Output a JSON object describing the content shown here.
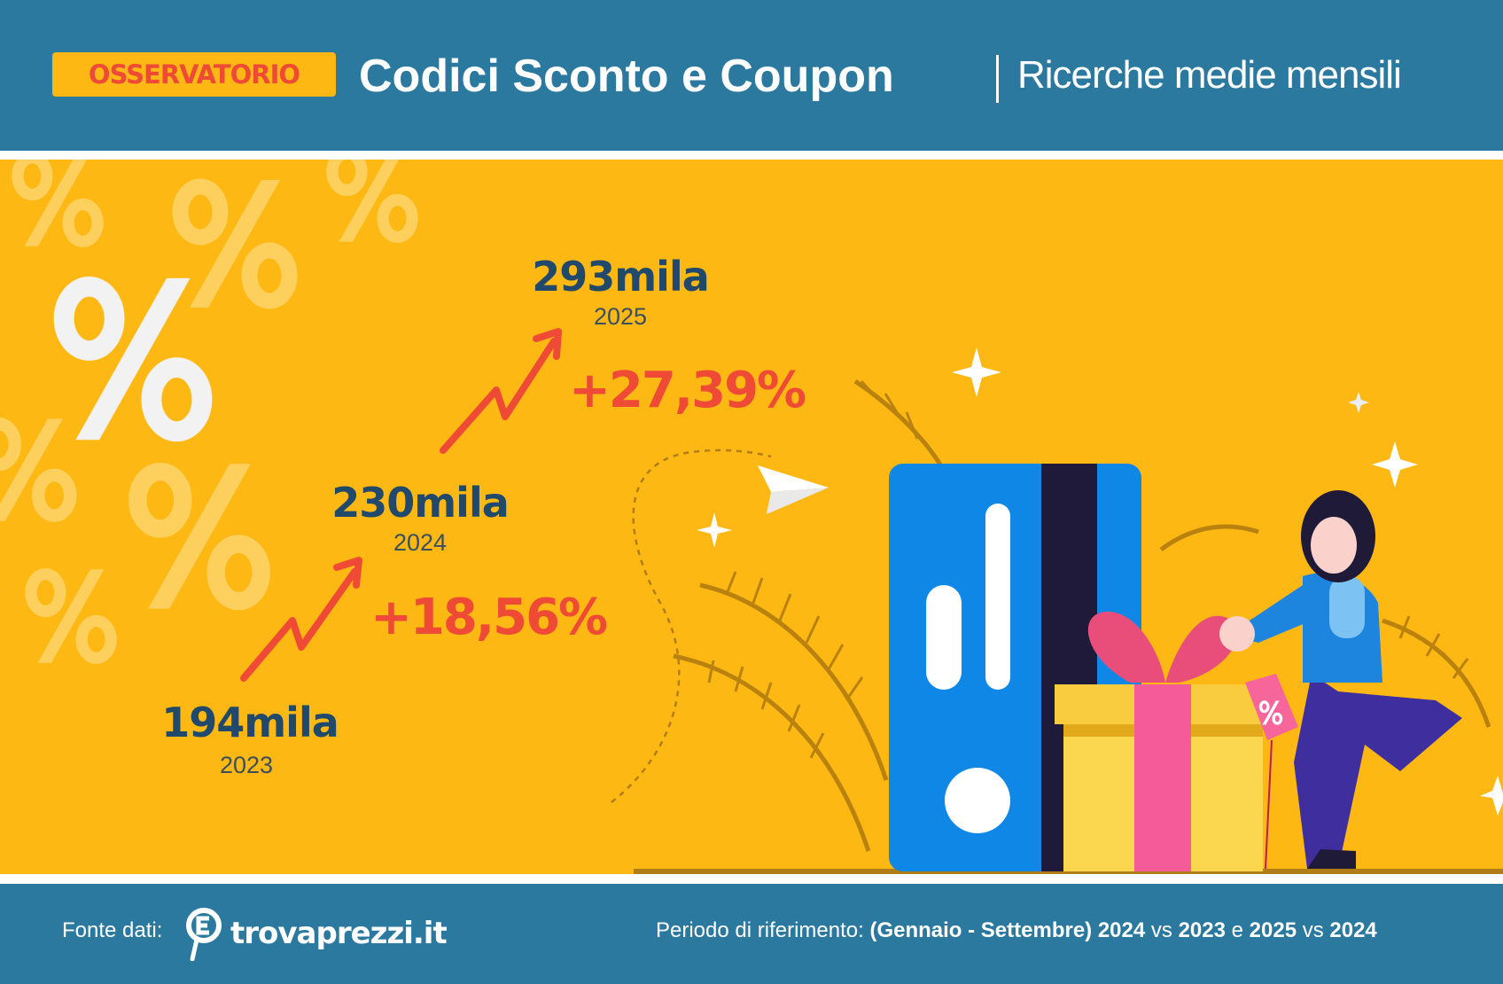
{
  "header": {
    "badge": "OSSERVATORIO",
    "title": "Codici Sconto e Coupon",
    "subtitle": "Ricerche medie mensili"
  },
  "stats": [
    {
      "value": "194mila",
      "year": "2023"
    },
    {
      "value": "230mila",
      "year": "2024",
      "change": "+18,56%"
    },
    {
      "value": "293mila",
      "year": "2025",
      "change": "+27,39%"
    }
  ],
  "footer": {
    "source_label": "Fonte dati:",
    "source_logo": "trovaprezzi.it",
    "period_label": "Periodo di riferimento:",
    "period_range": "(Gennaio - Settembre)",
    "period_y1": "2024",
    "vs1": "vs",
    "period_y2": "2023",
    "and": "e",
    "period_y3": "2025",
    "vs2": "vs",
    "period_y4": "2024"
  },
  "colors": {
    "header_bg": "#2c79a0",
    "band_bg": "#fdb813",
    "accent_red": "#ef4a35",
    "value_blue": "#20496b",
    "card_blue": "#0e87e6"
  },
  "icons": [
    "percent-icon",
    "trend-arrow-icon",
    "paper-plane-icon",
    "sparkle-icon",
    "credit-card-icon",
    "gift-box-icon",
    "discount-tag-icon",
    "magnifier-euro-icon"
  ]
}
